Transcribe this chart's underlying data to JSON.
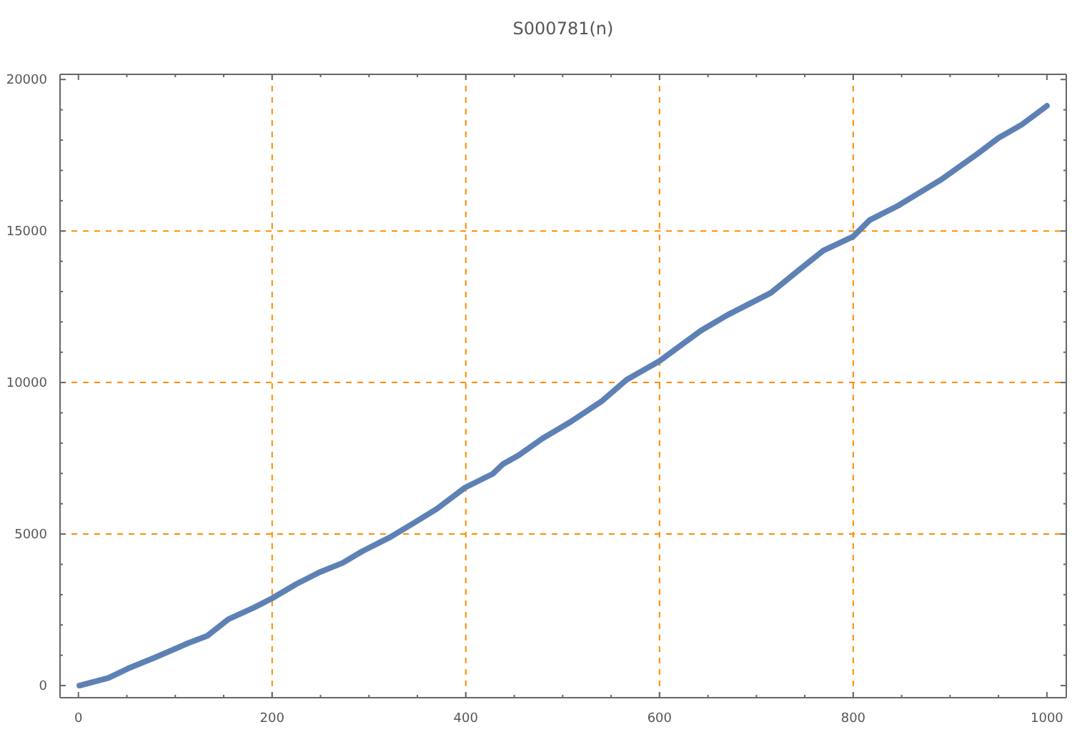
{
  "chart_data": {
    "type": "line",
    "title": "S000781(n)",
    "x": [
      1,
      31,
      51,
      80,
      114,
      133,
      155,
      181,
      200,
      225,
      249,
      273,
      293,
      322,
      346,
      370,
      399,
      428,
      438,
      455,
      479,
      508,
      541,
      566,
      600,
      643,
      672,
      715,
      742,
      769,
      800,
      817,
      846,
      890,
      928,
      950,
      974,
      1000
    ],
    "series": [
      {
        "color": "#5e81b5",
        "values": [
          0,
          250,
          560,
          940,
          1410,
          1640,
          2190,
          2570,
          2880,
          3350,
          3740,
          4050,
          4430,
          4900,
          5360,
          5830,
          6530,
          6990,
          7300,
          7610,
          8150,
          8700,
          9400,
          10090,
          10710,
          11720,
          12260,
          12960,
          13660,
          14350,
          14820,
          15360,
          15830,
          16680,
          17540,
          18070,
          18510,
          19130
        ]
      }
    ],
    "xlim": [
      -19,
      1020
    ],
    "ylim": [
      -400,
      20170
    ],
    "xticks": [
      0,
      {
        "value": 50,
        "label": null
      },
      {
        "value": 100,
        "label": null
      },
      {
        "value": 150,
        "label": null
      },
      200,
      {
        "value": 250,
        "label": null
      },
      {
        "value": 300,
        "label": null
      },
      {
        "value": 350,
        "label": null
      },
      400,
      {
        "value": 450,
        "label": null
      },
      {
        "value": 500,
        "label": null
      },
      {
        "value": 550,
        "label": null
      },
      600,
      {
        "value": 650,
        "label": null
      },
      {
        "value": 700,
        "label": null
      },
      {
        "value": 750,
        "label": null
      },
      800,
      {
        "value": 850,
        "label": null
      },
      {
        "value": 900,
        "label": null
      },
      {
        "value": 950,
        "label": null
      },
      1000
    ],
    "yticks": [
      0,
      {
        "value": 1000,
        "label": null
      },
      {
        "value": 2000,
        "label": null
      },
      {
        "value": 3000,
        "label": null
      },
      {
        "value": 4000,
        "label": null
      },
      5000,
      {
        "value": 6000,
        "label": null
      },
      {
        "value": 7000,
        "label": null
      },
      {
        "value": 8000,
        "label": null
      },
      {
        "value": 9000,
        "label": null
      },
      10000,
      {
        "value": 11000,
        "label": null
      },
      {
        "value": 12000,
        "label": null
      },
      {
        "value": 13000,
        "label": null
      },
      {
        "value": 14000,
        "label": null
      },
      15000,
      {
        "value": 16000,
        "label": null
      },
      {
        "value": 17000,
        "label": null
      },
      {
        "value": 18000,
        "label": null
      },
      {
        "value": 19000,
        "label": null
      },
      20000
    ],
    "ref_lines": [
      {
        "axis": "x",
        "value": 200,
        "color": "#ff8c00",
        "line_style": "dashed"
      },
      {
        "axis": "x",
        "value": 400,
        "color": "#ff8c00",
        "line_style": "dashed"
      },
      {
        "axis": "x",
        "value": 600,
        "color": "#ff8c00",
        "line_style": "dashed"
      },
      {
        "axis": "x",
        "value": 800,
        "color": "#ff8c00",
        "line_style": "dashed"
      },
      {
        "axis": "y",
        "value": 5000,
        "color": "#ff8c00",
        "line_style": "dashed"
      },
      {
        "axis": "y",
        "value": 10000,
        "color": "#ff8c00",
        "line_style": "dashed"
      },
      {
        "axis": "y",
        "value": 15000,
        "color": "#ff8c00",
        "line_style": "dashed"
      }
    ]
  }
}
